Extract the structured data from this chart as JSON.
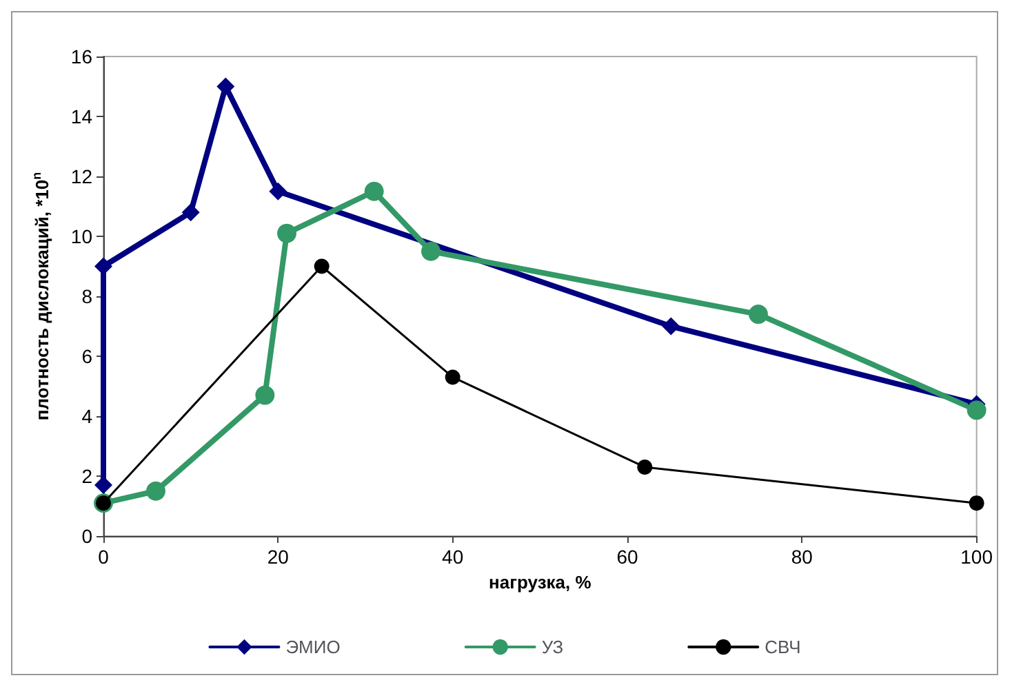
{
  "chart_data": {
    "type": "line",
    "xlabel": "нагрузка, %",
    "ylabel": "плотность дислокаций, *10$^{n}$",
    "xlim": [
      0,
      100
    ],
    "xticks": [
      0,
      20,
      40,
      60,
      80,
      100
    ],
    "ylim": [
      0,
      16
    ],
    "yticks": [
      0,
      2,
      4,
      6,
      8,
      10,
      12,
      14,
      16
    ],
    "grid": false,
    "legend": "bottom",
    "line_style": "solid",
    "series": [
      {
        "name": "ЭМИО",
        "color": "#000080",
        "marker": "diamond",
        "x": [
          0,
          0,
          10,
          14,
          20,
          65,
          100
        ],
        "values": [
          1.7,
          9,
          10.8,
          15,
          11.5,
          7,
          4.4
        ]
      },
      {
        "name": "УЗ",
        "color": "#339966",
        "marker": "circle",
        "x": [
          0,
          6,
          18.5,
          21,
          31,
          37.5,
          75,
          100
        ],
        "values": [
          1.1,
          1.5,
          4.7,
          10.1,
          11.5,
          9.5,
          7.4,
          4.2
        ]
      },
      {
        "name": "СВЧ",
        "color": "#000000",
        "marker": "circle",
        "x": [
          0,
          25,
          40,
          62,
          100
        ],
        "values": [
          1.1,
          9,
          5.3,
          2.3,
          1.1
        ]
      }
    ]
  }
}
